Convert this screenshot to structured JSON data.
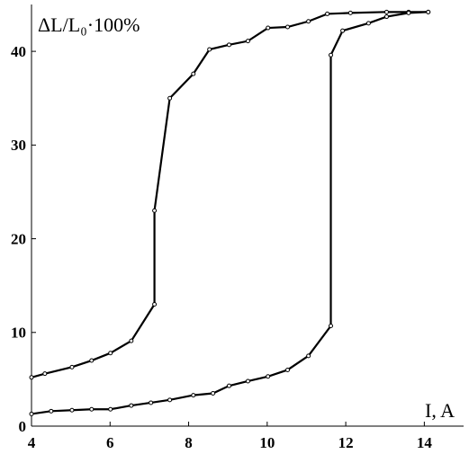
{
  "chart_data": {
    "type": "line",
    "y_label": "ΔL/L₀·100%",
    "x_label": "I, A",
    "xlim": [
      4,
      15
    ],
    "xticks": [
      4,
      6,
      8,
      10,
      12,
      14
    ],
    "ylim": [
      0,
      45
    ],
    "yticks": [
      0,
      10,
      20,
      30,
      40
    ],
    "markers": true,
    "series": [
      {
        "color": "#000000",
        "x": [
          4,
          4.34,
          5.03,
          5.53,
          6.01,
          6.54,
          7.13,
          7.13,
          7.52,
          8.12,
          8.53,
          9.03,
          9.51,
          10.02,
          10.52,
          11.05,
          11.53,
          12.12,
          13.04,
          13.6,
          14.1
        ],
        "values": [
          5.2,
          5.6,
          6.3,
          7.0,
          7.8,
          9.1,
          13.0,
          23.0,
          35.0,
          37.6,
          40.2,
          40.7,
          41.1,
          42.5,
          42.6,
          43.2,
          44.0,
          44.1,
          44.2,
          44.2,
          44.2
        ]
      },
      {
        "color": "#000000",
        "x": [
          4,
          4.5,
          5.03,
          5.53,
          6.01,
          6.54,
          7.04,
          7.52,
          8.12,
          8.62,
          9.03,
          9.51,
          10.02,
          10.52,
          11.05,
          11.62,
          11.62,
          11.92,
          12.58,
          13.04,
          13.6,
          14.1
        ],
        "values": [
          1.3,
          1.6,
          1.7,
          1.8,
          1.8,
          2.2,
          2.5,
          2.8,
          3.3,
          3.5,
          4.3,
          4.8,
          5.3,
          6.0,
          7.5,
          10.7,
          39.6,
          42.2,
          43.0,
          43.7,
          44.1,
          44.2
        ]
      }
    ]
  }
}
